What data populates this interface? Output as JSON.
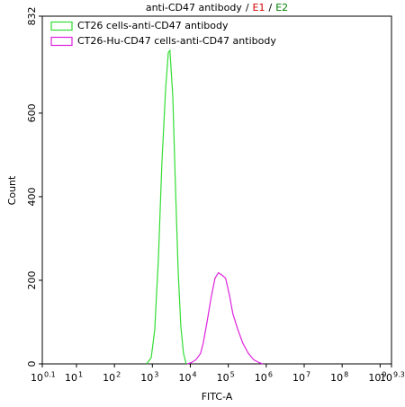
{
  "chart_data": {
    "type": "line",
    "title_parts": [
      {
        "text": "anti-CD47 antibody",
        "color": "#000000"
      },
      {
        "text": "/",
        "color": "#000000"
      },
      {
        "text": "E1",
        "color": "#d00000"
      },
      {
        "text": "/",
        "color": "#000000"
      },
      {
        "text": "E2",
        "color": "#008000"
      }
    ],
    "x_label": "FITC-A",
    "y_label": "Count",
    "xscale": "log",
    "xlim": [
      1.2589254117941673,
      1995262314.9688
    ],
    "xticks": [
      {
        "value": 1.2589254117941673,
        "label": "10",
        "exponent": "0.1"
      },
      {
        "value": 10,
        "label": "10",
        "exponent": "1"
      },
      {
        "value": 100,
        "label": "10",
        "exponent": "2"
      },
      {
        "value": 1000,
        "label": "10",
        "exponent": "3"
      },
      {
        "value": 10000,
        "label": "10",
        "exponent": "4"
      },
      {
        "value": 100000,
        "label": "10",
        "exponent": "5"
      },
      {
        "value": 1000000,
        "label": "10",
        "exponent": "6"
      },
      {
        "value": 10000000,
        "label": "10",
        "exponent": "7"
      },
      {
        "value": 100000000,
        "label": "10",
        "exponent": "8"
      },
      {
        "value": 1000000000,
        "label": "10",
        "exponent": "9"
      },
      {
        "value": 1995262314.9688,
        "label": "10",
        "exponent": "9.3"
      }
    ],
    "ylim": [
      0,
      832
    ],
    "yticks": [
      0,
      200,
      400,
      600,
      832
    ],
    "legend": "upper-left",
    "series": [
      {
        "name": "CT26 cells-anti-CD47 antibody",
        "color": "#33dd33",
        "x": [
          708,
          933,
          1150,
          1440,
          1780,
          2240,
          2630,
          2900,
          3450,
          4070,
          4790,
          5620,
          6610,
          7760
        ],
        "values": [
          0,
          15,
          80,
          250,
          480,
          660,
          745,
          750,
          640,
          420,
          220,
          90,
          25,
          0
        ]
      },
      {
        "name": "CT26-Hu-CD47 cells-anti-CD47 antibody",
        "color": "#dd22dd",
        "x": [
          8300,
          10700,
          14100,
          18600,
          21900,
          27500,
          35500,
          44700,
          55000,
          69000,
          85000,
          107000,
          132000,
          174000,
          240000,
          339000,
          468000,
          646000,
          813000
        ],
        "values": [
          0,
          3,
          10,
          25,
          50,
          100,
          160,
          205,
          218,
          212,
          205,
          165,
          120,
          85,
          50,
          25,
          10,
          3,
          0
        ]
      }
    ]
  }
}
